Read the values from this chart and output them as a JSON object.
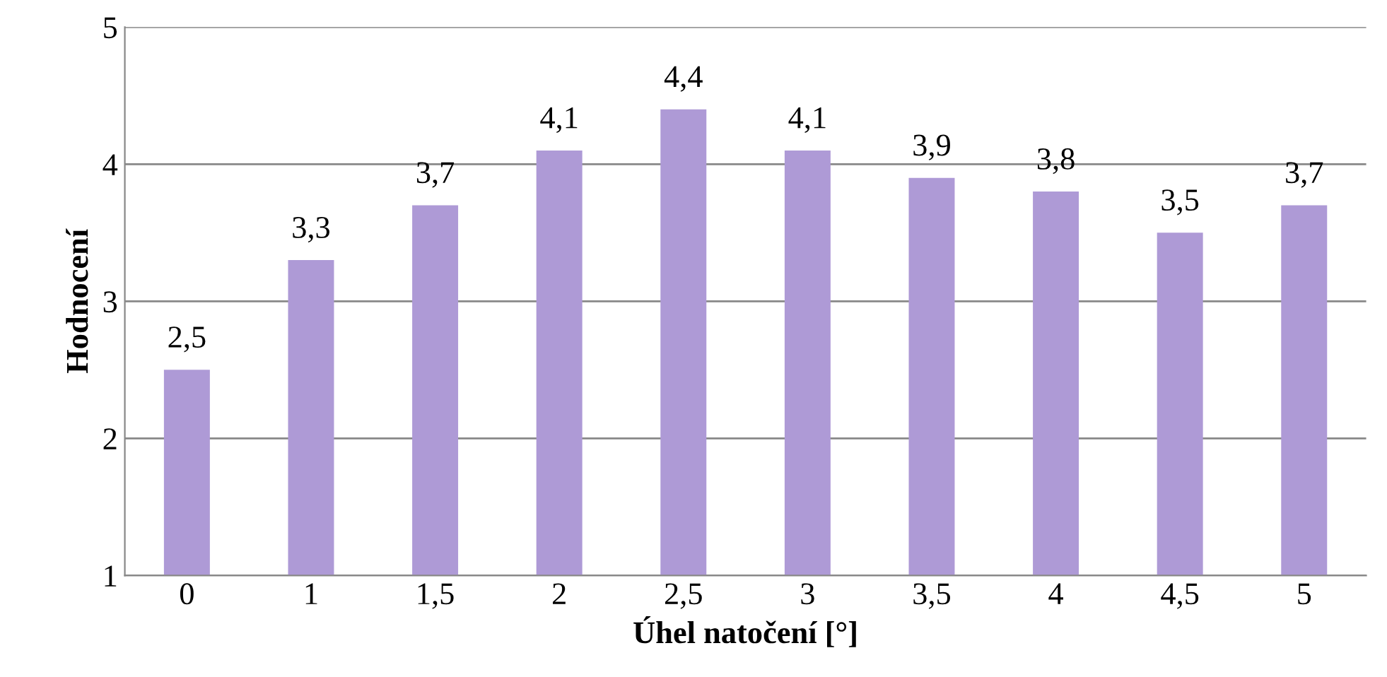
{
  "chart_data": {
    "type": "bar",
    "xlabel": "Úhel natočení [°]",
    "ylabel": "Hodnocení",
    "categories": [
      "0",
      "1",
      "1,5",
      "2",
      "2,5",
      "3",
      "3,5",
      "4",
      "4,5",
      "5"
    ],
    "values": [
      2.5,
      3.3,
      3.7,
      4.1,
      4.4,
      4.1,
      3.9,
      3.8,
      3.5,
      3.7
    ],
    "value_labels": [
      "2,5",
      "3,3",
      "3,7",
      "4,1",
      "4,4",
      "4,1",
      "3,9",
      "3,8",
      "3,5",
      "3,7"
    ],
    "color": "#ae9ad6",
    "ylim": [
      1,
      5
    ],
    "yticks": [
      1,
      2,
      3,
      4,
      5
    ],
    "grid": "y",
    "legend": false
  }
}
